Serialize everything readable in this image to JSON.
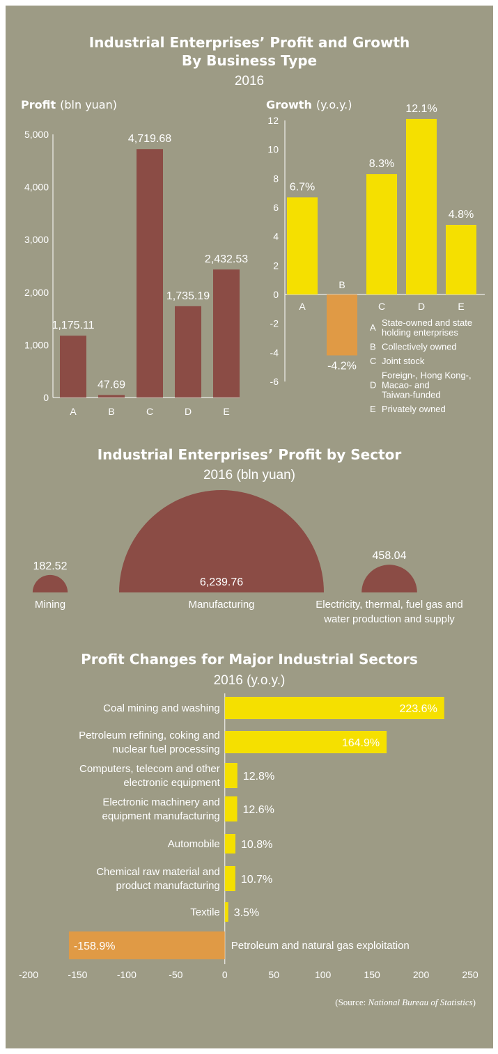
{
  "section1": {
    "title_line1": "Industrial Enterprises’ Profit and Growth",
    "title_line2": "By Business Type",
    "year": "2016"
  },
  "chart_data": [
    {
      "type": "bar",
      "ylabel_bold": "Profit",
      "ylabel_unit": "(bln yuan)",
      "categories": [
        "A",
        "B",
        "C",
        "D",
        "E"
      ],
      "values": [
        1175.11,
        47.69,
        4719.68,
        1735.19,
        2432.53
      ],
      "value_labels": [
        "1,175.11",
        "47.69",
        "4,719.68",
        "1,735.19",
        "2,432.53"
      ],
      "ylim": [
        0,
        5000
      ],
      "yticks": [
        0,
        1000,
        2000,
        3000,
        4000,
        5000
      ],
      "ytick_labels": [
        "0",
        "1,000",
        "2,000",
        "3,000",
        "4,000",
        "5,000"
      ],
      "color": "#8b4c45",
      "grid": false
    },
    {
      "type": "bar",
      "ylabel_bold": "Growth",
      "ylabel_unit": "(y.o.y.)",
      "categories": [
        "A",
        "B",
        "C",
        "D",
        "E"
      ],
      "values": [
        6.7,
        -4.2,
        8.3,
        12.1,
        4.8
      ],
      "value_labels": [
        "6.7%",
        "-4.2%",
        "8.3%",
        "12.1%",
        "4.8%"
      ],
      "ylim": [
        -6,
        12
      ],
      "yticks": [
        -6,
        -4,
        -2,
        0,
        2,
        4,
        6,
        8,
        10,
        12
      ],
      "ytick_labels": [
        "-6",
        "-4",
        "-2",
        "0",
        "2",
        "4",
        "6",
        "8",
        "10",
        "12"
      ],
      "positive_color": "#f5e000",
      "negative_color": "#e09a45",
      "grid": false,
      "legend": [
        {
          "key": "A",
          "lines": [
            "State-owned and state",
            "holding enterprises"
          ]
        },
        {
          "key": "B",
          "lines": [
            "Collectively owned"
          ]
        },
        {
          "key": "C",
          "lines": [
            "Joint stock"
          ]
        },
        {
          "key": "D",
          "lines": [
            "Foreign-, Hong Kong-,",
            "Macao- and",
            "Taiwan-funded"
          ]
        },
        {
          "key": "E",
          "lines": [
            "Privately owned"
          ]
        }
      ]
    },
    {
      "type": "area",
      "title": "Industrial Enterprises’ Profit by Sector",
      "subtitle": "2016 (bln yuan)",
      "categories": [
        {
          "lines": [
            "Mining"
          ]
        },
        {
          "lines": [
            "Manufacturing"
          ]
        },
        {
          "lines": [
            "Electricity, thermal, fuel gas and",
            "water production and supply"
          ]
        }
      ],
      "values": [
        182.52,
        6239.76,
        458.04
      ],
      "value_labels": [
        "182.52",
        "6,239.76",
        "458.04"
      ],
      "color": "#8b4c45"
    },
    {
      "type": "bar",
      "orientation": "horizontal",
      "title": "Profit Changes for Major Industrial Sectors",
      "subtitle": "2016 (y.o.y.)",
      "categories": [
        [
          "Coal mining and washing"
        ],
        [
          "Petroleum refining, coking and",
          "nuclear fuel processing"
        ],
        [
          "Computers, telecom and other",
          "electronic equipment"
        ],
        [
          "Electronic machinery and",
          "equipment manufacturing"
        ],
        [
          "Automobile"
        ],
        [
          "Chemical raw material and",
          "product manufacturing"
        ],
        [
          "Textile"
        ],
        [
          "Petroleum and natural gas exploitation"
        ]
      ],
      "values": [
        223.6,
        164.9,
        12.8,
        12.6,
        10.8,
        10.7,
        3.5,
        -158.9
      ],
      "value_labels": [
        "223.6%",
        "164.9%",
        "12.8%",
        "12.6%",
        "10.8%",
        "10.7%",
        "3.5%",
        "-158.9%"
      ],
      "xlim": [
        -200,
        250
      ],
      "xticks": [
        -200,
        -150,
        -100,
        -50,
        0,
        50,
        100,
        150,
        200,
        250
      ],
      "xtick_labels": [
        "-200",
        "-150",
        "-100",
        "-50",
        "0",
        "50",
        "100",
        "150",
        "200",
        "250"
      ],
      "positive_color": "#f5e000",
      "negative_color": "#e09a45",
      "grid": false
    }
  ],
  "source": {
    "prefix": "(Source: ",
    "name": "National Bureau of Statistics",
    "suffix": ")"
  }
}
